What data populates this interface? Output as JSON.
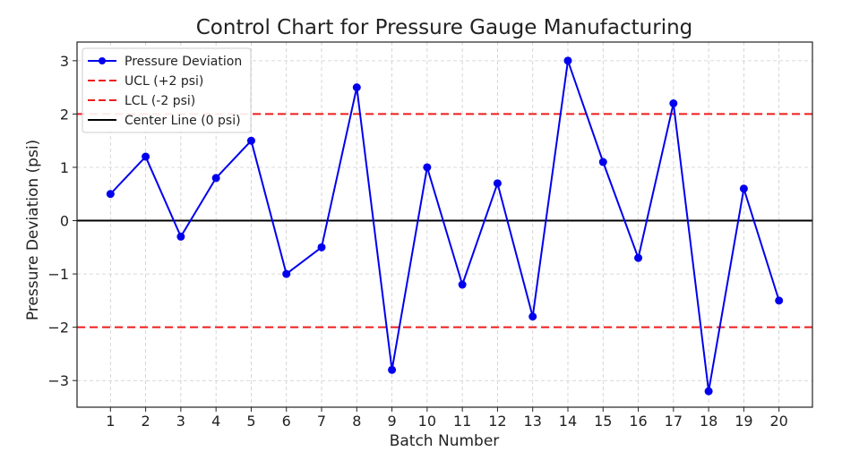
{
  "chart_data": {
    "type": "line",
    "title": "Control Chart for Pressure Gauge Manufacturing",
    "xlabel": "Batch Number",
    "ylabel": "Pressure Deviation (psi)",
    "x": [
      1,
      2,
      3,
      4,
      5,
      6,
      7,
      8,
      9,
      10,
      11,
      12,
      13,
      14,
      15,
      16,
      17,
      18,
      19,
      20
    ],
    "x_tick_labels": [
      "1",
      "2",
      "3",
      "4",
      "5",
      "6",
      "7",
      "8",
      "9",
      "10",
      "11",
      "12",
      "13",
      "14",
      "15",
      "16",
      "17",
      "18",
      "19",
      "20"
    ],
    "y_ticks": [
      -3,
      -2,
      -1,
      0,
      1,
      2,
      3
    ],
    "y_tick_labels": [
      "−3",
      "−2",
      "−1",
      "0",
      "1",
      "2",
      "3"
    ],
    "xlim": [
      0.05,
      20.95
    ],
    "ylim": [
      -3.5,
      3.35
    ],
    "grid": true,
    "legend_position": "top-left",
    "series": [
      {
        "name": "Pressure Deviation",
        "color": "#0000ee",
        "values": [
          0.5,
          1.2,
          -0.3,
          0.8,
          1.5,
          -1.0,
          -0.5,
          2.5,
          -2.8,
          1.0,
          -1.2,
          0.7,
          -1.8,
          3.0,
          1.1,
          -0.7,
          2.2,
          -3.2,
          0.6,
          -1.5
        ]
      }
    ],
    "reference_lines": [
      {
        "name": "UCL (+2 psi)",
        "value": 2,
        "color": "#ee1c1c",
        "style": "dashed"
      },
      {
        "name": "LCL (-2 psi)",
        "value": -2,
        "color": "#ee1c1c",
        "style": "dashed"
      },
      {
        "name": "Center Line (0 psi)",
        "value": 0,
        "color": "#000000",
        "style": "solid"
      }
    ]
  }
}
